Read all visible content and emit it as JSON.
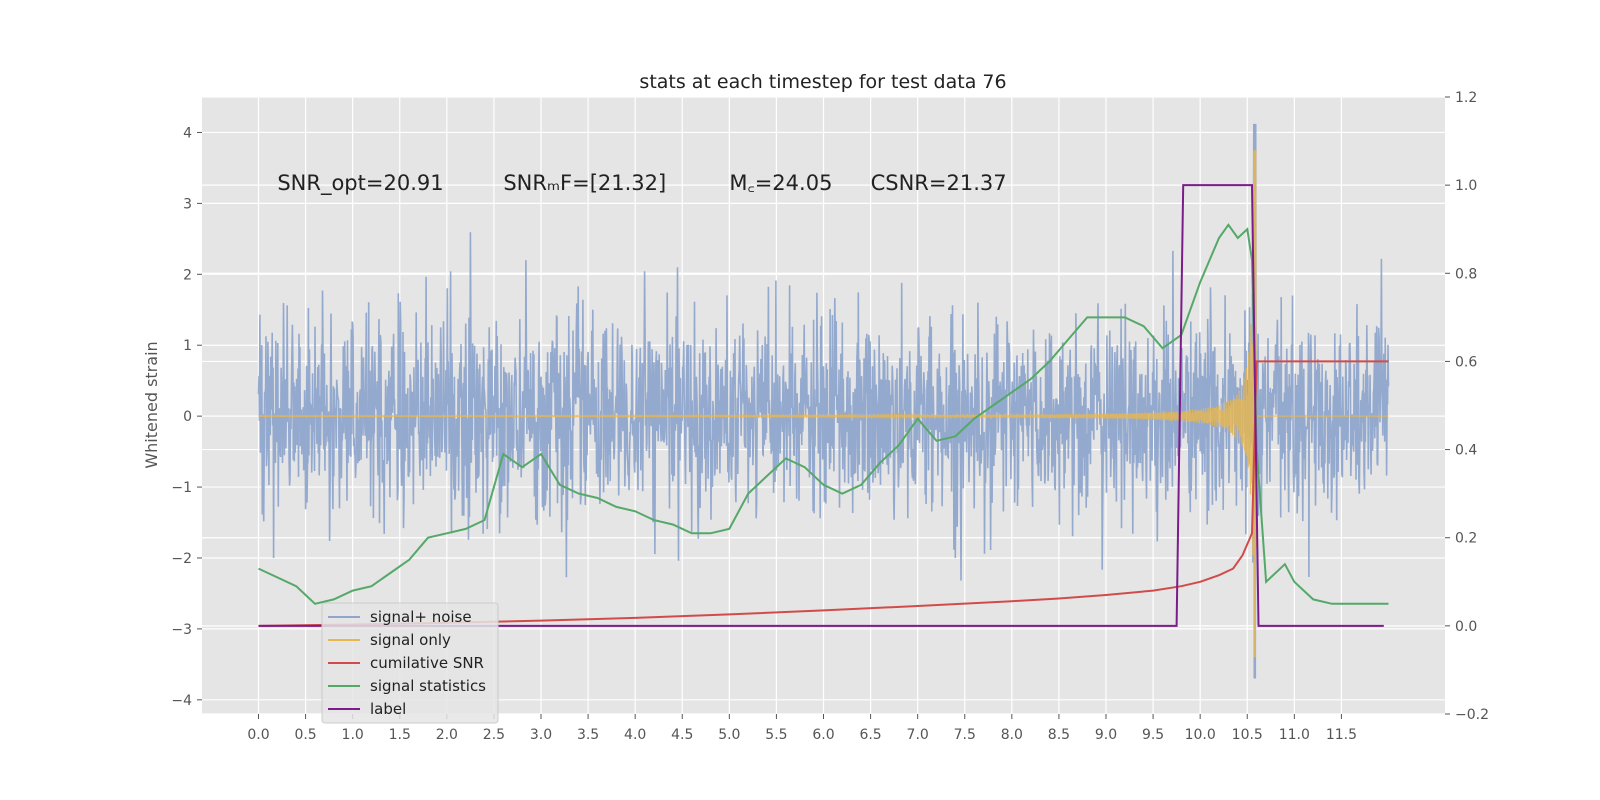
{
  "chart_data": {
    "type": "line",
    "title": "stats at each timestep for test data 76",
    "ylabel": "Whitened strain",
    "xlabel": "",
    "xlim": [
      -0.6,
      12.6
    ],
    "ylim": [
      -4.2,
      4.5
    ],
    "y2lim": [
      -0.2,
      1.2
    ],
    "x_ticks": [
      "0.0",
      "0.5",
      "1.0",
      "1.5",
      "2.0",
      "2.5",
      "3.0",
      "3.5",
      "4.0",
      "4.5",
      "5.0",
      "5.5",
      "6.0",
      "6.5",
      "7.0",
      "7.5",
      "8.0",
      "8.5",
      "9.0",
      "9.5",
      "10.0",
      "10.5",
      "11.0",
      "11.5"
    ],
    "y_ticks": [
      "4",
      "3",
      "2",
      "1",
      "0",
      "−1",
      "−2",
      "−3",
      "−4"
    ],
    "y2_ticks": [
      "1.2",
      "1.0",
      "0.8",
      "0.6",
      "0.4",
      "0.2",
      "0.0",
      "−0.2"
    ],
    "grid": true,
    "legend_position": "lower-left",
    "annotations": [
      {
        "x": 0.2,
        "y": 3.3,
        "text": "SNR_opt=20.91"
      },
      {
        "x": 2.6,
        "y": 3.3,
        "text": "SNRₘF=[21.32]"
      },
      {
        "x": 5.0,
        "y": 3.3,
        "text": "M꜀=24.05"
      },
      {
        "x": 6.5,
        "y": 3.3,
        "text": "CSNR=21.37"
      }
    ],
    "series": [
      {
        "name": "signal+ noise",
        "color": "#8fa5cc",
        "axis": "left",
        "kind": "noise",
        "x_range": [
          0.0,
          12.0
        ],
        "typical_amplitude": 1.1,
        "peak_x": 10.58,
        "peak_max": 4.12,
        "peak_min": -3.7
      },
      {
        "name": "signal only",
        "color": "#e8b64d",
        "axis": "left",
        "kind": "chirp",
        "x_range": [
          0.0,
          10.6
        ],
        "peak_x": 10.58,
        "peak_max": 3.75,
        "peak_min": -3.4
      },
      {
        "name": "cumilative SNR",
        "color": "#d24b4b",
        "axis": "right",
        "x": [
          0.0,
          1.0,
          2.0,
          3.0,
          4.0,
          5.0,
          6.0,
          7.0,
          8.0,
          8.5,
          9.0,
          9.5,
          9.8,
          10.0,
          10.2,
          10.35,
          10.45,
          10.55,
          10.6,
          11.0,
          11.5,
          12.0
        ],
        "y": [
          0.0,
          0.003,
          0.007,
          0.012,
          0.018,
          0.026,
          0.035,
          0.045,
          0.056,
          0.062,
          0.07,
          0.08,
          0.09,
          0.1,
          0.115,
          0.13,
          0.16,
          0.21,
          0.6,
          0.6,
          0.6,
          0.6
        ]
      },
      {
        "name": "signal statistics",
        "color": "#55a868",
        "axis": "right",
        "x": [
          0.0,
          0.2,
          0.4,
          0.5,
          0.6,
          0.8,
          1.0,
          1.2,
          1.4,
          1.6,
          1.8,
          2.0,
          2.2,
          2.4,
          2.6,
          2.8,
          3.0,
          3.2,
          3.4,
          3.6,
          3.8,
          4.0,
          4.2,
          4.4,
          4.6,
          4.8,
          5.0,
          5.2,
          5.4,
          5.6,
          5.8,
          6.0,
          6.2,
          6.4,
          6.6,
          6.8,
          7.0,
          7.2,
          7.4,
          7.6,
          7.8,
          8.0,
          8.2,
          8.4,
          8.6,
          8.8,
          9.0,
          9.2,
          9.4,
          9.6,
          9.8,
          10.0,
          10.2,
          10.3,
          10.4,
          10.5,
          10.55,
          10.6,
          10.7,
          10.8,
          10.9,
          11.0,
          11.2,
          11.4,
          11.6,
          11.8,
          12.0
        ],
        "y": [
          0.13,
          0.11,
          0.09,
          0.07,
          0.05,
          0.06,
          0.08,
          0.09,
          0.12,
          0.15,
          0.2,
          0.21,
          0.22,
          0.24,
          0.39,
          0.36,
          0.39,
          0.32,
          0.3,
          0.29,
          0.27,
          0.26,
          0.24,
          0.23,
          0.21,
          0.21,
          0.22,
          0.3,
          0.34,
          0.38,
          0.36,
          0.32,
          0.3,
          0.32,
          0.37,
          0.41,
          0.47,
          0.42,
          0.43,
          0.47,
          0.5,
          0.53,
          0.56,
          0.6,
          0.65,
          0.7,
          0.7,
          0.7,
          0.68,
          0.63,
          0.66,
          0.78,
          0.88,
          0.91,
          0.88,
          0.9,
          0.83,
          0.4,
          0.1,
          0.12,
          0.14,
          0.1,
          0.06,
          0.05,
          0.05,
          0.05,
          0.05
        ]
      },
      {
        "name": "label",
        "color": "#7b1c8a",
        "axis": "right",
        "x": [
          0.0,
          9.75,
          9.82,
          10.55,
          10.62,
          11.95
        ],
        "y": [
          0.0,
          0.0,
          1.0,
          1.0,
          0.0,
          0.0
        ]
      }
    ]
  }
}
